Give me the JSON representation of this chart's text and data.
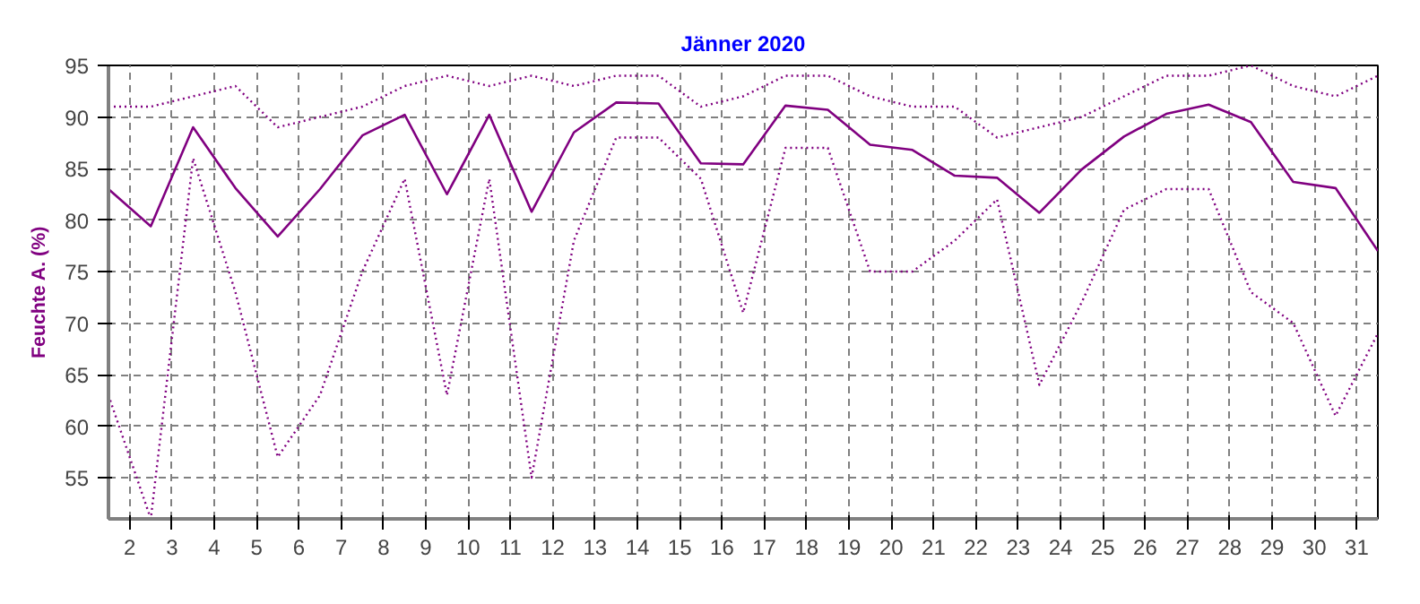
{
  "chart_data": {
    "type": "line",
    "title": "Jänner 2020",
    "ylabel": "Feuchte A. (%)",
    "x": [
      1.5,
      2.5,
      3.5,
      4.5,
      5.5,
      6.5,
      7.5,
      8.5,
      9.5,
      10.5,
      11.5,
      12.5,
      13.5,
      14.5,
      15.5,
      16.5,
      17.5,
      18.5,
      19.5,
      20.5,
      21.5,
      22.5,
      23.5,
      24.5,
      25.5,
      26.5,
      27.5,
      28.5,
      29.5,
      30.5,
      31.5
    ],
    "series": [
      {
        "color": "#800080",
        "line_style": "dotted",
        "values": [
          91,
          91,
          92,
          93,
          89,
          90,
          91,
          93,
          94,
          93,
          94,
          93,
          94,
          94,
          91,
          92,
          94,
          94,
          92,
          91,
          91,
          88,
          89,
          90,
          92,
          94,
          94,
          95,
          93,
          92,
          94
        ]
      },
      {
        "color": "#800080",
        "line_style": "solid",
        "values": [
          83.0,
          79.4,
          89.0,
          83.1,
          78.4,
          83.0,
          88.2,
          90.2,
          82.5,
          90.2,
          80.8,
          88.5,
          91.4,
          91.3,
          85.5,
          85.4,
          91.1,
          90.7,
          87.3,
          86.8,
          84.3,
          84.1,
          80.7,
          84.9,
          88.1,
          90.3,
          91.2,
          89.5,
          83.7,
          83.1,
          77.0
        ]
      },
      {
        "color": "#800080",
        "line_style": "dotted",
        "values": [
          63,
          51,
          86,
          73,
          57,
          63,
          75,
          84,
          63,
          84,
          55,
          78,
          88,
          88,
          84,
          71,
          87,
          87,
          75,
          75,
          78,
          82,
          64,
          72,
          81,
          83,
          83,
          73,
          70,
          61,
          69
        ]
      }
    ],
    "xlim": [
      1.5,
      31.5
    ],
    "xticks": [
      2,
      3,
      4,
      5,
      6,
      7,
      8,
      9,
      10,
      11,
      12,
      13,
      14,
      15,
      16,
      17,
      18,
      19,
      20,
      21,
      22,
      23,
      24,
      25,
      26,
      27,
      28,
      29,
      30,
      31
    ],
    "ylim": [
      51,
      95
    ],
    "yticks": [
      55,
      60,
      65,
      70,
      75,
      80,
      85,
      90,
      95
    ],
    "grid": true,
    "marker": "none"
  }
}
